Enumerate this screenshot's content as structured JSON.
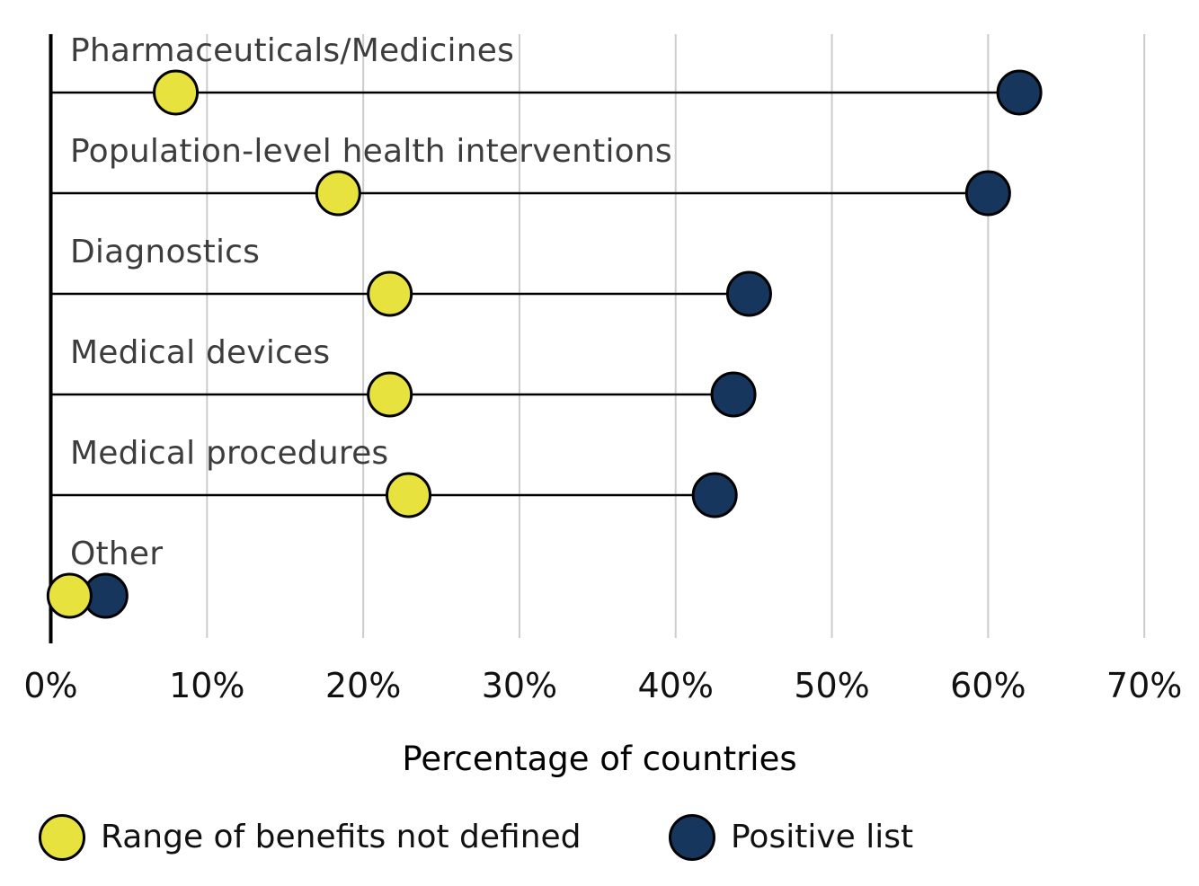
{
  "chart_data": {
    "type": "dumbbell",
    "xlabel": "Percentage of countries",
    "x_range": [
      0,
      70
    ],
    "x_ticks": [
      "0%",
      "10%",
      "20%",
      "30%",
      "40%",
      "50%",
      "60%",
      "70%"
    ],
    "grid": "vertical-only",
    "legend_position": "bottom",
    "categories": [
      "Pharmaceuticals/Medicines",
      "Population-level health interventions",
      "Diagnostics",
      "Medical devices",
      "Medical procedures",
      "Other"
    ],
    "series": [
      {
        "name": "Range of benefits not defined",
        "color": "#e8e23f",
        "values": [
          8,
          18.4,
          21.7,
          21.7,
          22.9,
          1.2
        ]
      },
      {
        "name": "Positive list",
        "color": "#17365d",
        "values": [
          62,
          60,
          44.7,
          43.7,
          42.5,
          3.5
        ]
      }
    ]
  },
  "colors": {
    "grid": "#cccccc",
    "axis": "#000000",
    "connector": "#000000",
    "dot_stroke": "#000000",
    "category_text": "#3d3d3d",
    "tick_text": "#111111"
  }
}
